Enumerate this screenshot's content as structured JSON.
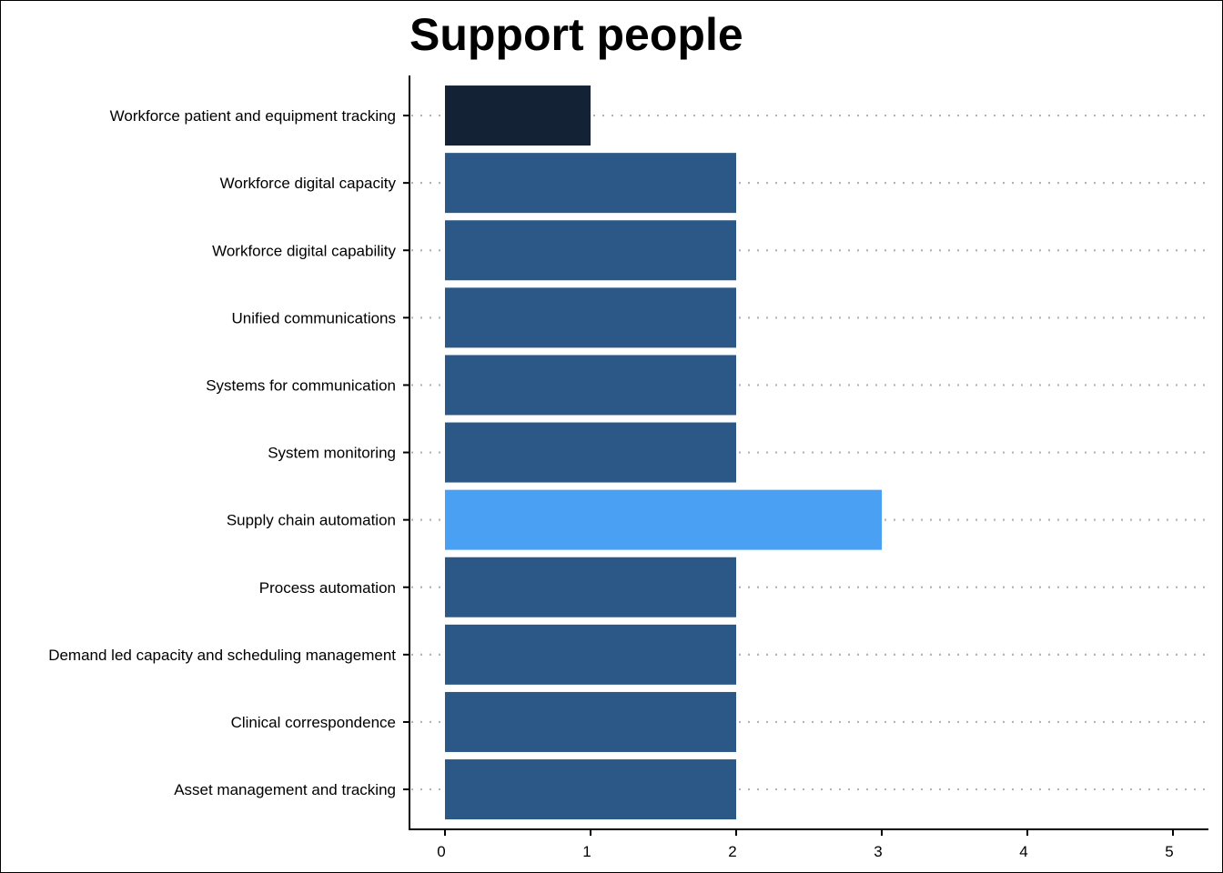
{
  "chart_data": {
    "type": "bar",
    "orientation": "horizontal",
    "title": "Support people",
    "xlabel": "",
    "ylabel": "",
    "xlim": [
      0,
      5
    ],
    "x_ticks": [
      0,
      1,
      2,
      3,
      4,
      5
    ],
    "grid": "dotted horizontal",
    "legend": "none",
    "categories": [
      "Workforce patient and equipment tracking",
      "Workforce digital capacity",
      "Workforce digital capability",
      "Unified communications",
      "Systems for communication",
      "System monitoring",
      "Supply chain automation",
      "Process automation",
      "Demand led capacity and scheduling management",
      "Clinical correspondence",
      "Asset management and tracking"
    ],
    "values": [
      1,
      2,
      2,
      2,
      2,
      2,
      3,
      2,
      2,
      2,
      2
    ],
    "colors": [
      "#132235",
      "#2b5886",
      "#2b5886",
      "#2b5886",
      "#2b5886",
      "#2b5886",
      "#4aa1f4",
      "#2b5886",
      "#2b5886",
      "#2b5886",
      "#2b5886"
    ],
    "axis_color": "#000000",
    "grid_color": "#b3b3b3"
  }
}
